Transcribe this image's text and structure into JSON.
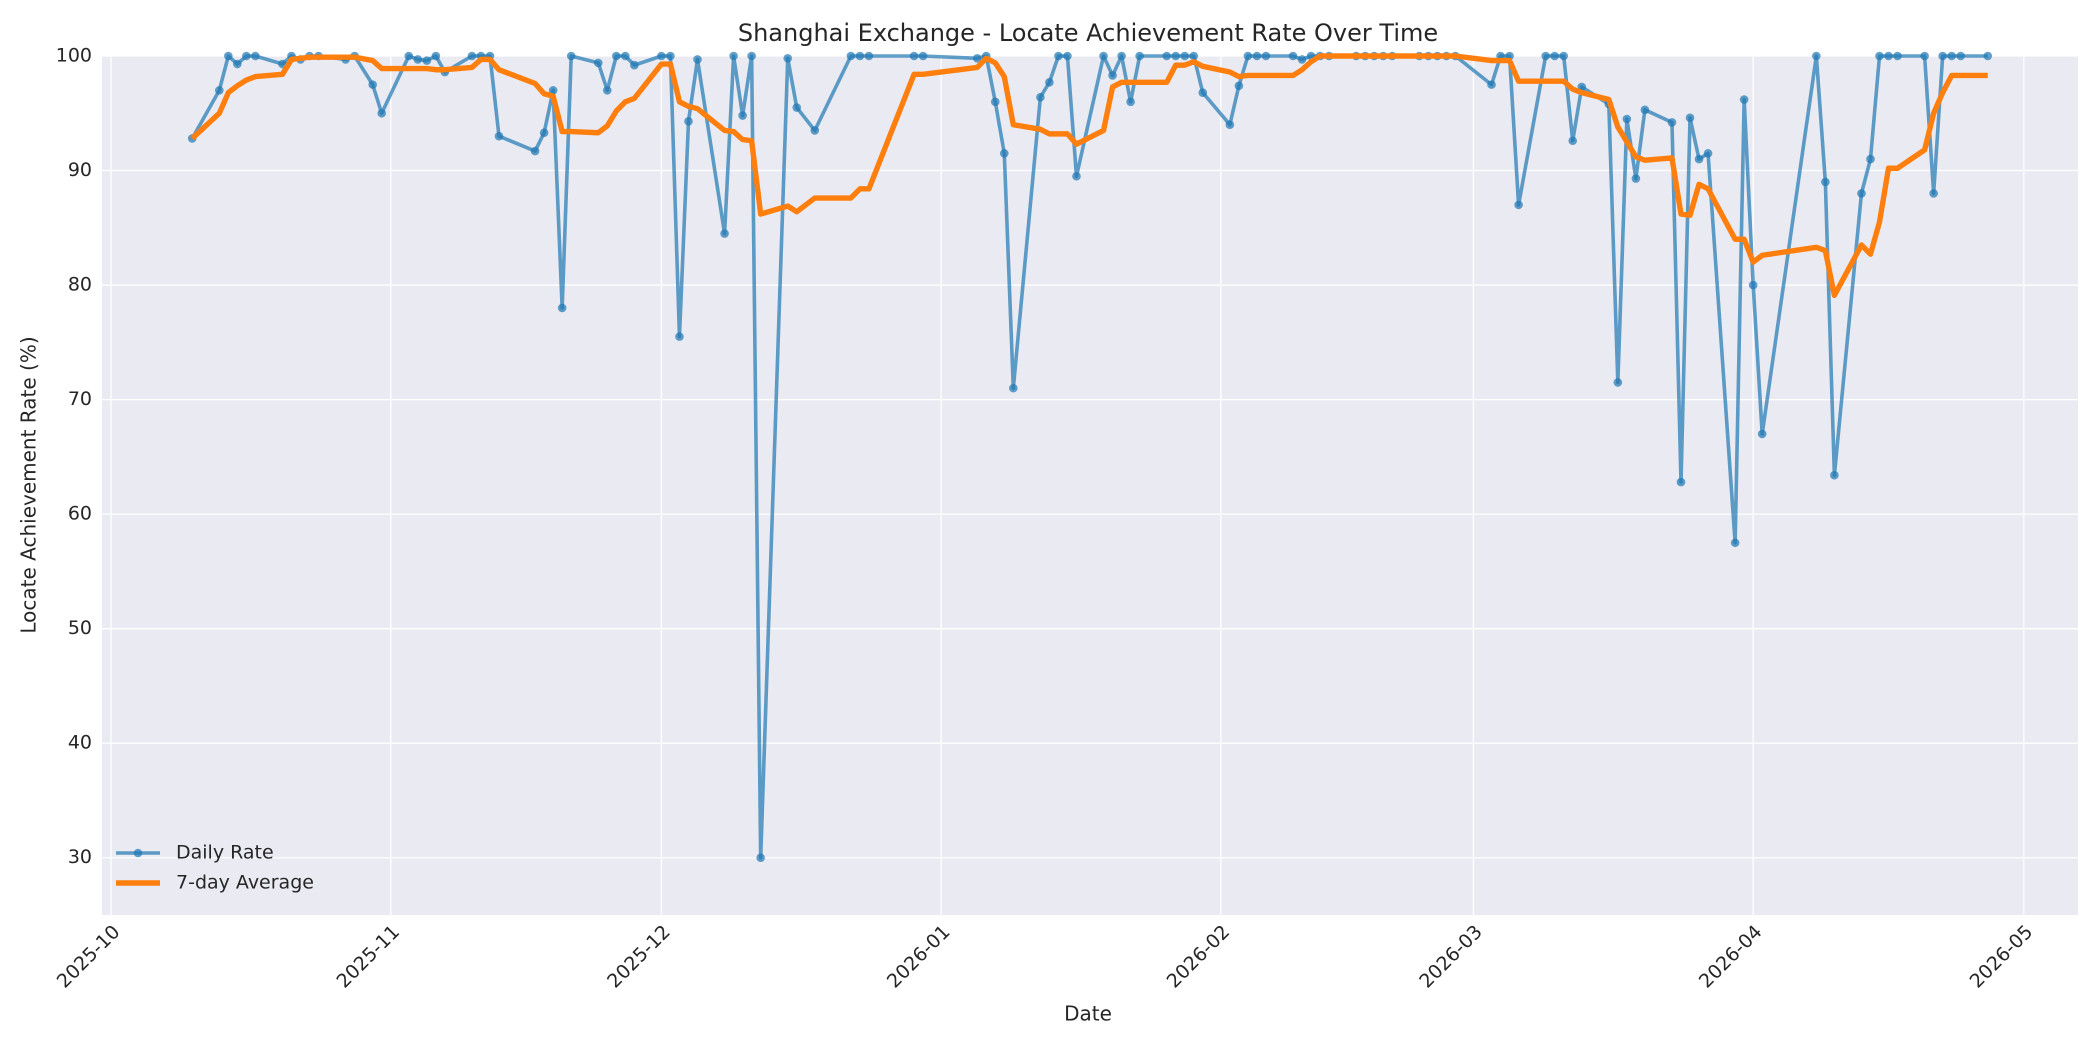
{
  "chart_data": {
    "type": "line",
    "title": "Shanghai Exchange - Locate Achievement Rate Over Time",
    "x_label": "Date",
    "y_label": "Locate Achievement Rate (%)",
    "x": [
      "2025-10-10",
      "2025-10-13",
      "2025-10-14",
      "2025-10-15",
      "2025-10-16",
      "2025-10-17",
      "2025-10-20",
      "2025-10-21",
      "2025-10-22",
      "2025-10-23",
      "2025-10-24",
      "2025-10-27",
      "2025-10-28",
      "2025-10-30",
      "2025-10-31",
      "2025-11-03",
      "2025-11-04",
      "2025-11-05",
      "2025-11-06",
      "2025-11-07",
      "2025-11-10",
      "2025-11-11",
      "2025-11-12",
      "2025-11-13",
      "2025-11-17",
      "2025-11-18",
      "2025-11-19",
      "2025-11-20",
      "2025-11-21",
      "2025-11-24",
      "2025-11-25",
      "2025-11-26",
      "2025-11-27",
      "2025-11-28",
      "2025-12-01",
      "2025-12-02",
      "2025-12-03",
      "2025-12-04",
      "2025-12-05",
      "2025-12-08",
      "2025-12-09",
      "2025-12-10",
      "2025-12-11",
      "2025-12-12",
      "2025-12-15",
      "2025-12-16",
      "2025-12-18",
      "2025-12-22",
      "2025-12-23",
      "2025-12-24",
      "2025-12-29",
      "2025-12-30",
      "2026-01-05",
      "2026-01-06",
      "2026-01-07",
      "2026-01-08",
      "2026-01-09",
      "2026-01-12",
      "2026-01-13",
      "2026-01-14",
      "2026-01-15",
      "2026-01-16",
      "2026-01-19",
      "2026-01-20",
      "2026-01-21",
      "2026-01-22",
      "2026-01-23",
      "2026-01-26",
      "2026-01-27",
      "2026-01-28",
      "2026-01-29",
      "2026-01-30",
      "2026-02-02",
      "2026-02-03",
      "2026-02-04",
      "2026-02-05",
      "2026-02-06",
      "2026-02-09",
      "2026-02-10",
      "2026-02-11",
      "2026-02-12",
      "2026-02-13",
      "2026-02-16",
      "2026-02-17",
      "2026-02-18",
      "2026-02-19",
      "2026-02-20",
      "2026-02-23",
      "2026-02-24",
      "2026-02-25",
      "2026-02-26",
      "2026-02-27",
      "2026-03-03",
      "2026-03-04",
      "2026-03-05",
      "2026-03-06",
      "2026-03-09",
      "2026-03-10",
      "2026-03-11",
      "2026-03-12",
      "2026-03-13",
      "2026-03-16",
      "2026-03-17",
      "2026-03-18",
      "2026-03-19",
      "2026-03-20",
      "2026-03-23",
      "2026-03-24",
      "2026-03-25",
      "2026-03-26",
      "2026-03-27",
      "2026-03-30",
      "2026-03-31",
      "2026-04-01",
      "2026-04-02",
      "2026-04-08",
      "2026-04-09",
      "2026-04-10",
      "2026-04-13",
      "2026-04-14",
      "2026-04-15",
      "2026-04-16",
      "2026-04-17",
      "2026-04-20",
      "2026-04-21",
      "2026-04-22",
      "2026-04-23",
      "2026-04-24",
      "2026-04-27"
    ],
    "series": [
      {
        "name": "Daily Rate",
        "color": "#1f77b4",
        "marker": "o",
        "values": [
          92.8,
          97,
          100,
          99.3,
          100,
          100,
          99.3,
          100,
          99.7,
          100,
          100,
          99.7,
          100,
          97.5,
          95,
          100,
          99.7,
          99.6,
          100,
          98.6,
          100,
          100,
          100,
          93,
          91.7,
          93.3,
          97,
          78,
          100,
          99.4,
          97,
          100,
          100,
          99.2,
          100,
          100,
          75.5,
          94.3,
          99.7,
          84.5,
          100,
          94.8,
          100,
          30,
          99.8,
          95.5,
          93.5,
          100,
          100,
          100,
          100,
          100,
          99.8,
          100,
          96,
          91.5,
          71,
          96.4,
          97.7,
          100,
          100,
          89.5,
          100,
          98.3,
          100,
          96,
          100,
          100,
          100,
          100,
          100,
          96.8,
          94,
          97.4,
          100,
          100,
          100,
          100,
          99.7,
          100,
          100,
          100,
          100,
          100,
          100,
          100,
          100,
          100,
          100,
          100,
          100,
          100,
          97.5,
          100,
          100,
          87,
          100,
          100,
          100,
          92.6,
          97.3,
          95.8,
          71.5,
          94.5,
          89.3,
          95.3,
          94.2,
          62.8,
          94.6,
          91,
          91.5,
          57.5,
          96.2,
          80,
          67,
          100,
          89,
          63.4,
          88,
          91,
          100,
          100,
          100,
          100,
          88,
          100,
          100,
          100,
          100
        ]
      },
      {
        "name": "7-day Average",
        "color": "#ff7f0e",
        "values": [
          92.8,
          95,
          96.8,
          97.4,
          97.9,
          98.2,
          98.4,
          99.7,
          99.8,
          99.9,
          99.9,
          99.9,
          99.9,
          99.6,
          98.9,
          98.9,
          98.9,
          98.9,
          98.8,
          98.8,
          99,
          99.7,
          99.7,
          98.8,
          97.6,
          96.7,
          96.5,
          93.4,
          93.4,
          93.3,
          93.9,
          95.2,
          96,
          96.3,
          99.3,
          99.3,
          96,
          95.6,
          95.4,
          93.5,
          93.4,
          92.7,
          92.6,
          86.2,
          86.9,
          86.4,
          87.6,
          87.6,
          88.4,
          88.4,
          98.4,
          98.4,
          99,
          99.8,
          99.4,
          98.2,
          94,
          93.6,
          93.2,
          93.2,
          93.2,
          92.3,
          93.5,
          97.3,
          97.7,
          97.7,
          97.7,
          97.7,
          99.2,
          99.2,
          99.5,
          99.1,
          98.6,
          98.2,
          98.3,
          98.3,
          98.3,
          98.3,
          98.8,
          99.5,
          100,
          100,
          100,
          100,
          100,
          100,
          100,
          100,
          100,
          100,
          100,
          100,
          99.6,
          99.6,
          99.6,
          97.8,
          97.8,
          97.8,
          97.8,
          97.1,
          96.8,
          96.2,
          93.8,
          92.5,
          91.2,
          90.9,
          91.1,
          86.2,
          86.1,
          88.8,
          88.4,
          84,
          84,
          82,
          82.6,
          83.3,
          83,
          79.1,
          83.5,
          82.7,
          85.5,
          90.2,
          90.2,
          91.8,
          95,
          96.8,
          98.3,
          98.3,
          98.3
        ]
      }
    ],
    "xlim": [
      "2025-09-30",
      "2026-05-07"
    ],
    "xticks": [
      "2025-10",
      "2025-11",
      "2025-12",
      "2026-01",
      "2026-02",
      "2026-03",
      "2026-04",
      "2026-05"
    ],
    "ylim": [
      25,
      100
    ],
    "yticks": [
      30,
      40,
      50,
      60,
      70,
      80,
      90,
      100
    ],
    "grid": true,
    "legend": "lower left"
  }
}
